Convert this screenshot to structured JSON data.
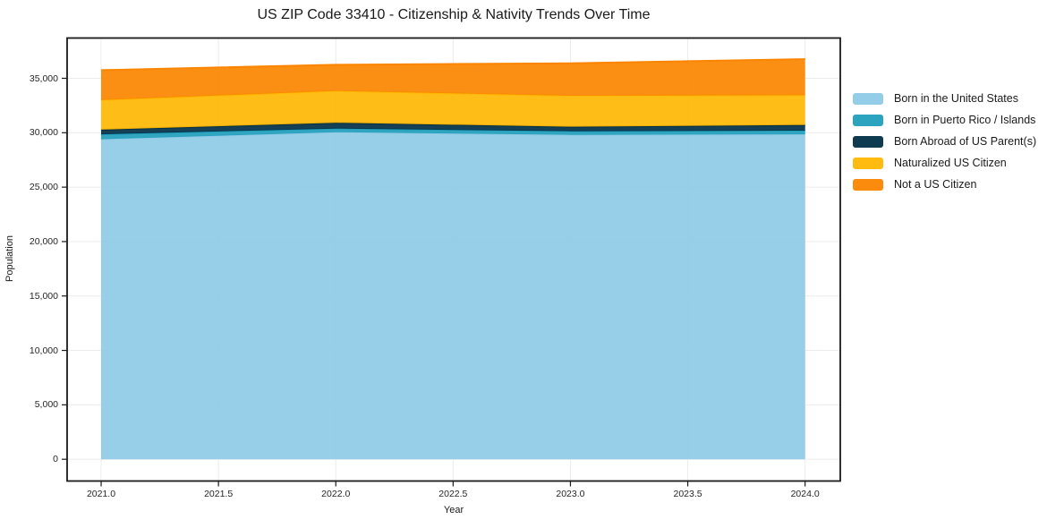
{
  "chart_data": {
    "type": "area",
    "stacked": true,
    "title": "US ZIP Code 33410 - Citizenship & Nativity Trends Over Time",
    "xlabel": "Year",
    "ylabel": "Population",
    "x": [
      2021,
      2022,
      2023,
      2024
    ],
    "series": [
      {
        "name": "Born in the United States",
        "color": "#8ecae6",
        "values": [
          29400,
          30050,
          29800,
          29850
        ]
      },
      {
        "name": "Born in Puerto Rico / Islands",
        "color": "#219ebc",
        "values": [
          450,
          330,
          330,
          340
        ]
      },
      {
        "name": "Born Abroad of US Parent(s)",
        "color": "#023047",
        "values": [
          430,
          530,
          420,
          520
        ]
      },
      {
        "name": "Naturalized US Citizen",
        "color": "#ffb703",
        "values": [
          2720,
          2930,
          2850,
          2740
        ]
      },
      {
        "name": "Not a US Citizen",
        "color": "#fb8500",
        "values": [
          2750,
          2400,
          2980,
          3310
        ]
      }
    ],
    "stack_totals": [
      35750,
      36240,
      36380,
      36760
    ],
    "xlim": [
      2020.855,
      2024.15
    ],
    "ylim": [
      -2000,
      38700
    ],
    "x_ticks": [
      2021.0,
      2021.5,
      2022.0,
      2022.5,
      2023.0,
      2023.5,
      2024.0
    ],
    "x_tick_labels": [
      "2021.0",
      "2021.5",
      "2022.0",
      "2022.5",
      "2023.0",
      "2023.5",
      "2024.0"
    ],
    "y_ticks": [
      0,
      5000,
      10000,
      15000,
      20000,
      25000,
      30000,
      35000
    ],
    "y_tick_labels": [
      "0",
      "5,000",
      "10,000",
      "15,000",
      "20,000",
      "25,000",
      "30,000",
      "35,000"
    ],
    "grid": true,
    "legend_position": "right",
    "fill_opacity": 0.92,
    "colors": {
      "grid": "#ececec",
      "spine": "#1a1a1a",
      "tick": "#1a1a1a",
      "text": "#1a1a1a",
      "background": "#ffffff"
    }
  }
}
